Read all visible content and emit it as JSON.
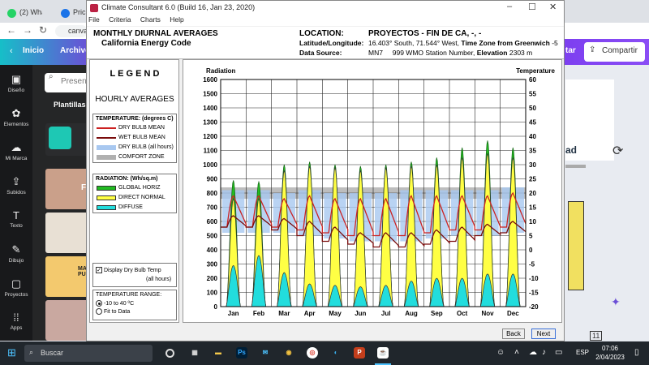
{
  "browser": {
    "tabs": [
      {
        "label": "(2) Wha",
        "color": "#25d366"
      },
      {
        "label": "Pric",
        "color": "#1a73e8"
      },
      {
        "label": "",
        "color": "#00c4cc"
      }
    ],
    "url": "canva"
  },
  "canva": {
    "back_label": "Inicio",
    "menu_label": "Archivo",
    "search_placeholder": "Presen",
    "templates_tab": "Plantillas",
    "rail": [
      {
        "icon": "▣",
        "label": "Diseño"
      },
      {
        "icon": "✿",
        "label": "Elementos"
      },
      {
        "icon": "☁",
        "label": "Mi Marca"
      },
      {
        "icon": "⇪",
        "label": "Subidos"
      },
      {
        "icon": "T",
        "label": "Texto"
      },
      {
        "icon": "✎",
        "label": "Dibujo"
      },
      {
        "icon": "▢",
        "label": "Proyectos"
      },
      {
        "icon": "⁞⁞",
        "label": "Apps"
      }
    ],
    "share_label": "Compartir",
    "upgrade_label": "tar",
    "thumb_texts": [
      "FIN",
      "MARKE PUBLIC"
    ],
    "right_text": "ad"
  },
  "window": {
    "title": "Climate Consultant 6.0 (Build 16, Jan 23, 2020)",
    "menus": [
      "File",
      "Criteria",
      "Charts",
      "Help"
    ],
    "heading1": "MONTHLY DIURNAL AVERAGES",
    "heading2": "California Energy Code",
    "location_label": "LOCATION:",
    "location_value": "PROYECTOS - FIN DE CA, -, -",
    "latlon_label": "Latitude/Longitude:",
    "latlon_value": "16.403° South, 71.544° West,",
    "tz_label": "Time Zone from Greenwich",
    "tz_value": "-5",
    "source_label": "Data Source:",
    "source_value": "MN7     999 WMO Station Number,",
    "elev_label": "Elevation",
    "elev_value": "2303 m",
    "back_btn": "Back",
    "next_btn": "Next"
  },
  "legend": {
    "title": "L E G E N D",
    "subtitle": "HOURLY AVERAGES",
    "temp_header": "TEMPERATURE: (degrees C)",
    "temp_items": [
      {
        "label": "DRY BULB MEAN",
        "color": "#cc2222"
      },
      {
        "label": "WET BULB MEAN",
        "color": "#7a0c0c"
      },
      {
        "label": "DRY BULB (all hours)",
        "color": "#a8c8f0"
      },
      {
        "label": "COMFORT ZONE",
        "color": "#b0b0b0"
      }
    ],
    "rad_header": "RADIATION: (Wh/sq.m)",
    "rad_items": [
      {
        "label": "GLOBAL HORIZ",
        "color": "#22bb22"
      },
      {
        "label": "DIRECT NORMAL",
        "color": "#ffff44"
      },
      {
        "label": "DIFFUSE",
        "color": "#22dddd"
      }
    ],
    "display_check": "Display Dry Bulb Temp",
    "display_check2": "(all hours)",
    "range_header": "TEMPERATURE RANGE:",
    "range_opt1": "-10 to 40 ºC",
    "range_opt2": "Fit to Data"
  },
  "chart_data": {
    "type": "area",
    "title": "",
    "left_axis_label": "Radiation",
    "right_axis_label": "Temperature",
    "categories": [
      "Jan",
      "Feb",
      "Mar",
      "Apr",
      "May",
      "Jun",
      "Jul",
      "Aug",
      "Sep",
      "Oct",
      "Nov",
      "Dec"
    ],
    "left_ylim": [
      0,
      1600
    ],
    "left_ticks": [
      0,
      100,
      200,
      300,
      400,
      500,
      600,
      700,
      800,
      900,
      1000,
      1100,
      1200,
      1300,
      1400,
      1500,
      1600
    ],
    "right_ylim": [
      -20,
      60
    ],
    "right_ticks": [
      -20,
      -15,
      -10,
      -5,
      0,
      5,
      10,
      15,
      20,
      25,
      30,
      35,
      40,
      45,
      50,
      55,
      60
    ],
    "comfort_zone_c": [
      18,
      22
    ],
    "series": [
      {
        "name": "GLOBAL HORIZ",
        "unit": "Wh/sq.m",
        "peak": [
          890,
          880,
          1000,
          1020,
          1000,
          990,
          1000,
          1020,
          1050,
          1120,
          1170,
          1120
        ]
      },
      {
        "name": "DIRECT NORMAL",
        "unit": "Wh/sq.m",
        "peak": [
          760,
          760,
          960,
          990,
          980,
          960,
          980,
          990,
          1000,
          1050,
          1080,
          1050
        ]
      },
      {
        "name": "DIFFUSE",
        "unit": "Wh/sq.m",
        "peak": [
          290,
          360,
          240,
          160,
          150,
          140,
          150,
          180,
          200,
          200,
          230,
          230
        ]
      },
      {
        "name": "DRY BULB MEAN",
        "unit": "C",
        "max": [
          19,
          19,
          18,
          19,
          18,
          18,
          18,
          19,
          19,
          19,
          19,
          20
        ],
        "min": [
          8,
          8,
          8,
          7,
          6,
          5,
          5,
          5,
          6,
          7,
          7,
          8
        ]
      },
      {
        "name": "WET BULB MEAN",
        "unit": "C",
        "max": [
          12,
          12,
          11,
          10,
          8,
          6,
          6,
          6,
          7,
          8,
          9,
          10
        ],
        "min": [
          8,
          8,
          7,
          5,
          3,
          2,
          1,
          1,
          2,
          3,
          5,
          6
        ]
      }
    ],
    "grid": true
  },
  "taskbar": {
    "search": "Buscar",
    "lang": "ESP",
    "time": "07:06",
    "date": "2/04/2023"
  }
}
